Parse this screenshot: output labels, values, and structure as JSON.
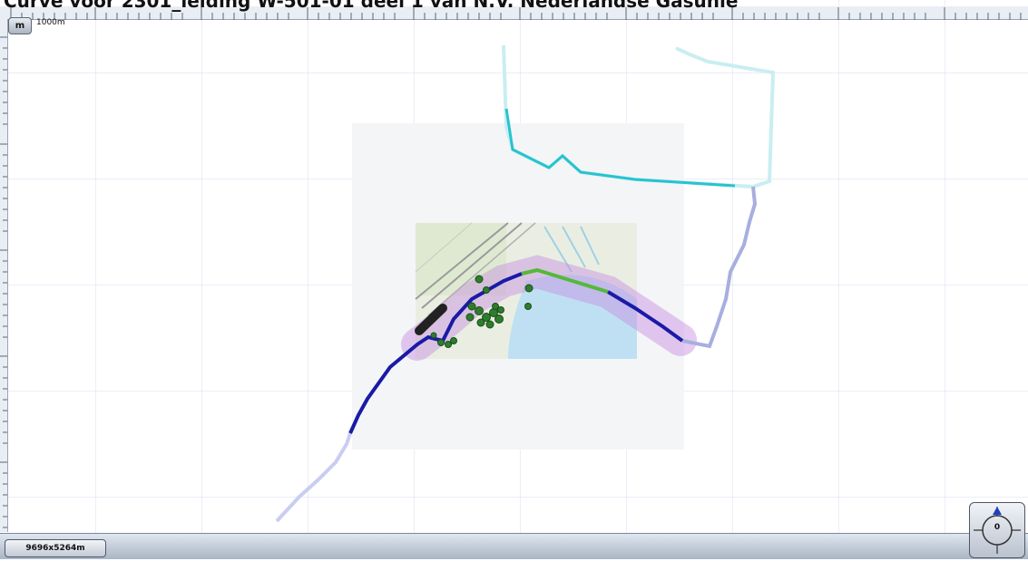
{
  "title": "Curve voor 2301_leiding W-501-01 deel 1 van N.V. Nederlandse Gasunie",
  "controls": {
    "unit_button": "m",
    "scale_label": "1000m"
  },
  "status": {
    "extent": "9696x5264m"
  },
  "compass": {
    "rotation": "0"
  },
  "colors": {
    "pipeline_primary": "#1a1aa8",
    "pipeline_faded": "#a8aedf",
    "pipeline_cyan": "#27c3cf",
    "highlight_green": "#55b83a",
    "buffer_purple": "#c58ce0",
    "trees": "#2e7d2e"
  }
}
